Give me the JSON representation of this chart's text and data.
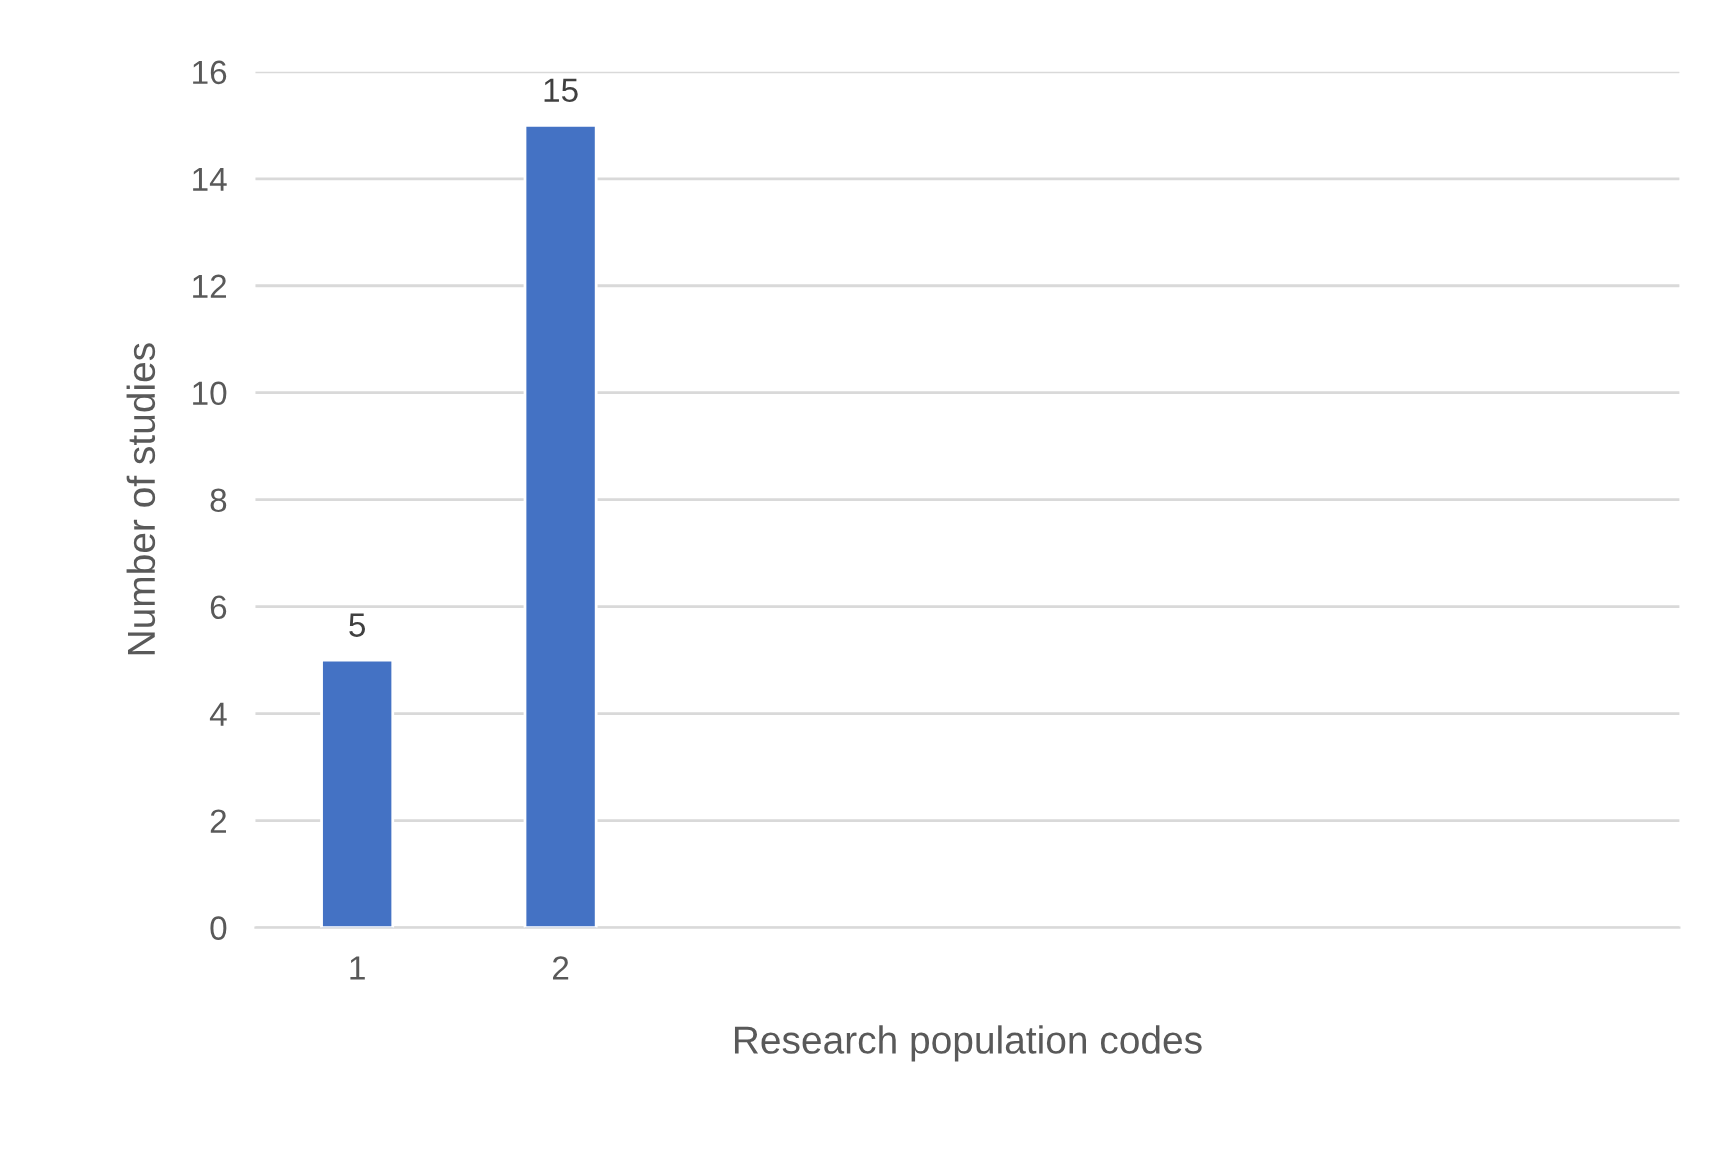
{
  "chart_data": {
    "type": "bar",
    "xlabel": "Research population codes",
    "ylabel": "Number of studies",
    "categories": [
      "1",
      "2",
      null,
      null,
      null,
      null,
      null
    ],
    "values": [
      5,
      15,
      null,
      null,
      null,
      null,
      null
    ],
    "color": "#4472c4",
    "ylim": [
      0,
      16
    ],
    "yticks": [
      0,
      2,
      4,
      6,
      8,
      10,
      12,
      14,
      16
    ],
    "grid": "y",
    "data_labels": true,
    "legend": false
  }
}
